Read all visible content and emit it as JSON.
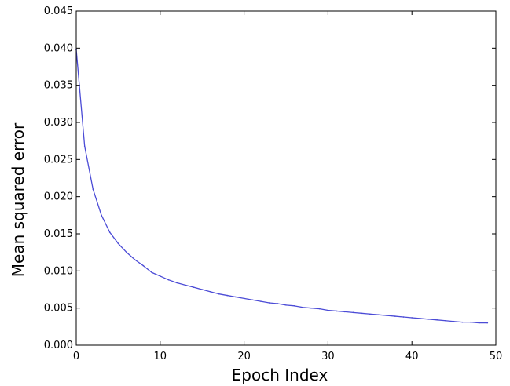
{
  "chart_data": {
    "type": "line",
    "title": "",
    "xlabel": "Epoch Index",
    "ylabel": "Mean squared error",
    "xlim": [
      0,
      50
    ],
    "ylim": [
      0.0,
      0.045
    ],
    "x_ticks": [
      0,
      10,
      20,
      30,
      40,
      50
    ],
    "y_ticks": [
      0.0,
      0.005,
      0.01,
      0.015,
      0.02,
      0.025,
      0.03,
      0.035,
      0.04,
      0.045
    ],
    "x_tick_labels": [
      "0",
      "10",
      "20",
      "30",
      "40",
      "50"
    ],
    "y_tick_labels": [
      "0.000",
      "0.005",
      "0.010",
      "0.015",
      "0.020",
      "0.025",
      "0.030",
      "0.035",
      "0.040",
      "0.045"
    ],
    "grid": false,
    "legend": "none",
    "series": [
      {
        "color": "#4b4bd6",
        "x": [
          0,
          1,
          2,
          3,
          4,
          5,
          6,
          7,
          8,
          9,
          10,
          11,
          12,
          13,
          14,
          15,
          16,
          17,
          18,
          19,
          20,
          21,
          22,
          23,
          24,
          25,
          26,
          27,
          28,
          29,
          30,
          31,
          32,
          33,
          34,
          35,
          36,
          37,
          38,
          39,
          40,
          41,
          42,
          43,
          44,
          45,
          46,
          47,
          48,
          49
        ],
        "y": [
          0.0398,
          0.0268,
          0.021,
          0.0175,
          0.0152,
          0.0137,
          0.0125,
          0.0115,
          0.0107,
          0.0098,
          0.0093,
          0.0088,
          0.0084,
          0.0081,
          0.0078,
          0.0075,
          0.0072,
          0.0069,
          0.0067,
          0.0065,
          0.0063,
          0.0061,
          0.0059,
          0.0057,
          0.0056,
          0.0054,
          0.0053,
          0.0051,
          0.005,
          0.0049,
          0.0047,
          0.0046,
          0.0045,
          0.0044,
          0.0043,
          0.0042,
          0.0041,
          0.004,
          0.0039,
          0.0038,
          0.0037,
          0.0036,
          0.0035,
          0.0034,
          0.0033,
          0.0032,
          0.0031,
          0.0031,
          0.003,
          0.003
        ]
      }
    ]
  }
}
